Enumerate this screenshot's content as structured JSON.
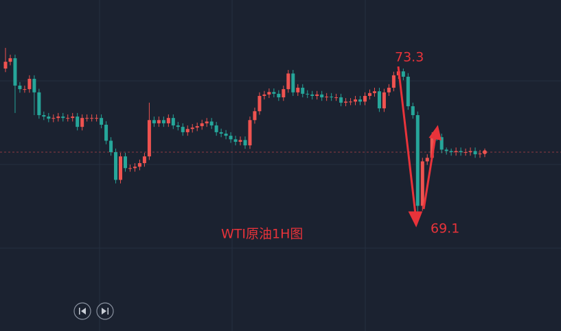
{
  "chart_data": {
    "type": "candlestick",
    "title": "WTI原油1H图",
    "annotations": [
      73.3,
      69.1
    ],
    "up_color": "#ef5350",
    "down_color": "#26a69a",
    "open": [
      73.3,
      73.49,
      73.59,
      72.82,
      72.72,
      72.72,
      73.01,
      72.63,
      71.99,
      71.95,
      71.89,
      71.91,
      71.95,
      71.91,
      71.91,
      71.95,
      71.66,
      71.91,
      71.91,
      71.91,
      71.91,
      71.72,
      71.27,
      70.95,
      70.17,
      70.83,
      70.5,
      70.5,
      70.54,
      70.64,
      70.83,
      71.85,
      71.76,
      71.85,
      71.76,
      71.91,
      71.7,
      71.66,
      71.51,
      71.6,
      71.64,
      71.68,
      71.76,
      71.81,
      71.7,
      71.51,
      71.47,
      71.41,
      71.31,
      71.24,
      71.29,
      71.14,
      71.85,
      72.1,
      72.53,
      72.57,
      72.64,
      72.59,
      72.49,
      72.72,
      73.16,
      72.63,
      72.76,
      72.59,
      72.57,
      72.53,
      72.57,
      72.49,
      72.51,
      72.49,
      72.49,
      72.34,
      72.37,
      72.37,
      72.43,
      72.37,
      72.53,
      72.61,
      72.66,
      72.18,
      72.63,
      72.76,
      73.11,
      73.22,
      73.07,
      72.24,
      71.99,
      69.44,
      70.69,
      70.79,
      71.41,
      71.37,
      71.02,
      70.98,
      70.95,
      70.98,
      70.95,
      70.95,
      70.98,
      70.89,
      70.91
    ],
    "high": [
      73.88,
      73.69,
      73.69,
      72.92,
      72.82,
      73.11,
      73.11,
      72.73,
      72.09,
      72.05,
      72.01,
      72.05,
      72.05,
      72.01,
      72.05,
      72.05,
      72.01,
      72.01,
      72.01,
      72.01,
      72.01,
      71.82,
      71.37,
      71.05,
      70.93,
      70.93,
      70.6,
      70.64,
      70.74,
      70.93,
      72.34,
      71.95,
      71.95,
      71.95,
      72.01,
      72.01,
      71.8,
      71.76,
      71.7,
      71.74,
      71.78,
      71.86,
      71.91,
      71.91,
      71.8,
      71.61,
      71.57,
      71.51,
      71.41,
      71.39,
      71.39,
      71.95,
      72.2,
      72.63,
      72.67,
      72.74,
      72.74,
      72.69,
      72.82,
      73.26,
      73.26,
      72.86,
      72.86,
      72.69,
      72.67,
      72.67,
      72.67,
      72.61,
      72.61,
      72.59,
      72.59,
      72.47,
      72.47,
      72.53,
      72.53,
      72.63,
      72.71,
      72.76,
      72.76,
      72.73,
      72.86,
      73.21,
      73.3,
      73.3,
      73.17,
      72.34,
      72.09,
      70.79,
      70.89,
      71.51,
      71.51,
      71.47,
      71.08,
      71.05,
      71.08,
      71.08,
      71.05,
      71.08,
      71.08,
      71.01,
      71.05
    ],
    "low": [
      73.2,
      73.39,
      72.05,
      72.62,
      72.62,
      72.62,
      71.99,
      71.89,
      71.85,
      71.79,
      71.79,
      71.81,
      71.81,
      71.81,
      71.81,
      71.56,
      71.56,
      71.81,
      71.81,
      71.81,
      71.62,
      71.17,
      70.85,
      70.07,
      70.07,
      70.4,
      70.4,
      70.4,
      70.44,
      70.54,
      70.73,
      71.66,
      71.66,
      71.66,
      71.66,
      71.6,
      71.56,
      71.41,
      71.41,
      71.5,
      71.54,
      71.58,
      71.66,
      71.6,
      71.41,
      71.37,
      71.31,
      71.21,
      71.14,
      71.14,
      71.04,
      71.04,
      71.75,
      72.0,
      72.43,
      72.47,
      72.49,
      72.39,
      72.39,
      72.62,
      72.53,
      72.53,
      72.49,
      72.47,
      72.43,
      72.43,
      72.39,
      72.39,
      72.39,
      72.39,
      72.24,
      72.24,
      72.27,
      72.27,
      72.27,
      72.27,
      72.43,
      72.51,
      72.08,
      72.08,
      72.53,
      72.66,
      73.01,
      72.97,
      72.14,
      71.89,
      69.1,
      69.3,
      70.59,
      70.69,
      71.27,
      70.92,
      70.88,
      70.85,
      70.85,
      70.85,
      70.85,
      70.85,
      70.79,
      70.79,
      70.81
    ],
    "close": [
      73.49,
      73.59,
      72.82,
      72.72,
      72.72,
      73.01,
      72.63,
      71.99,
      71.95,
      71.89,
      71.91,
      71.95,
      71.91,
      71.91,
      71.95,
      71.66,
      71.91,
      71.91,
      71.91,
      71.91,
      71.72,
      71.27,
      70.95,
      70.17,
      70.83,
      70.5,
      70.5,
      70.54,
      70.64,
      70.83,
      71.85,
      71.76,
      71.85,
      71.76,
      71.91,
      71.7,
      71.66,
      71.51,
      71.6,
      71.64,
      71.68,
      71.76,
      71.81,
      71.7,
      71.51,
      71.47,
      71.41,
      71.31,
      71.24,
      71.29,
      71.14,
      71.85,
      72.1,
      72.53,
      72.57,
      72.64,
      72.59,
      72.49,
      72.72,
      73.16,
      72.63,
      72.76,
      72.59,
      72.57,
      72.53,
      72.57,
      72.49,
      72.51,
      72.49,
      72.49,
      72.34,
      72.37,
      72.37,
      72.43,
      72.37,
      72.53,
      72.61,
      72.66,
      72.18,
      72.63,
      72.76,
      73.11,
      73.22,
      73.07,
      72.24,
      71.99,
      69.44,
      70.69,
      70.79,
      71.41,
      71.37,
      71.02,
      70.98,
      70.95,
      70.98,
      70.95,
      70.95,
      70.98,
      70.89,
      70.91,
      70.95
    ]
  }
}
